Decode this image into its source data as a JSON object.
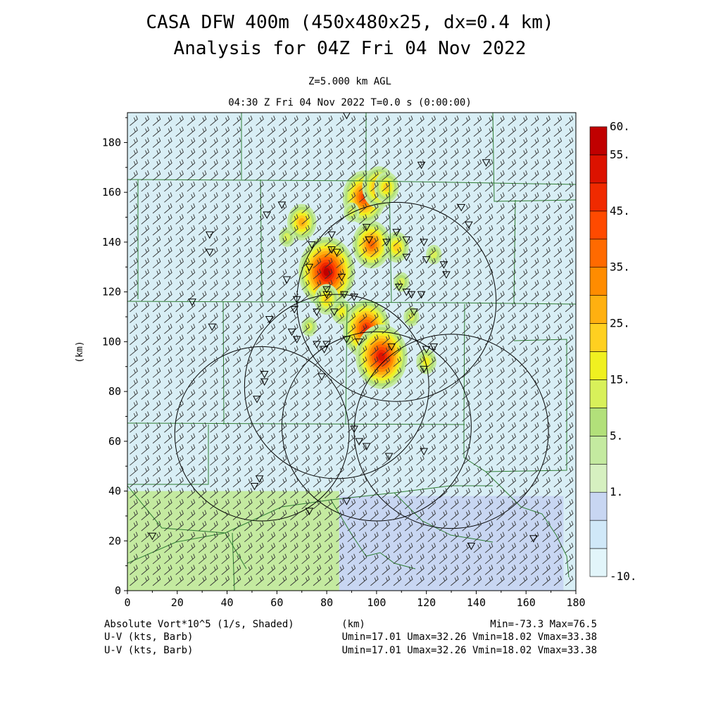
{
  "header": {
    "title_line1": "CASA DFW 400m (450x480x25, dx=0.4 km)",
    "title_line2": "Analysis for 04Z Fri 04 Nov 2022",
    "level": "Z=5.000 km AGL",
    "time_line": "04:30 Z Fri 04 Nov 2022    T=0.0 s (0:00:00)"
  },
  "footer": {
    "left1": "Absolute Vort*10^5 (1/s, Shaded)",
    "center1": "(km)",
    "right1": "Min=-73.3 Max=76.5",
    "left2": "U-V (kts, Barb)",
    "right2": "Umin=17.01 Umax=32.26 Vmin=18.02 Vmax=33.38",
    "left3": "U-V (kts, Barb)",
    "right3": "Umin=17.01 Umax=32.26 Vmin=18.02 Vmax=33.38"
  },
  "colors": {
    "county_lines": "#2e7d32",
    "frame": "#000000",
    "barb": "#333333",
    "base_field": "#d8eef5"
  },
  "chart_data": {
    "type": "heatmap",
    "title": "CASA DFW 400m (450x480x25, dx=0.4 km)",
    "subtitle": "Analysis for 04Z Fri 04 Nov 2022",
    "xlabel": "(km)",
    "ylabel": "(km)",
    "xlim": [
      0,
      180
    ],
    "ylim": [
      0,
      192
    ],
    "x_ticks": [
      0,
      20,
      40,
      60,
      80,
      100,
      120,
      140,
      160,
      180
    ],
    "y_ticks": [
      0,
      20,
      40,
      60,
      80,
      100,
      120,
      140,
      160,
      180
    ],
    "x_tick_labels": [
      "0",
      "20",
      "40",
      "60",
      "80",
      "100",
      "120",
      "140",
      "160",
      "180"
    ],
    "y_tick_labels": [
      "0",
      "20",
      "40",
      "60",
      "80",
      "100",
      "120",
      "140",
      "160",
      "180"
    ],
    "variable": "Absolute Vort*10^5 (1/s, Shaded)",
    "vector_field": "U-V (kts, Barb)",
    "field_min": -73.3,
    "field_max": 76.5,
    "wind_stats": {
      "umin": 17.01,
      "umax": 32.26,
      "vmin": 18.02,
      "vmax": 33.38
    },
    "colorbar": {
      "labels": [
        "60.",
        "55.",
        "45.",
        "35.",
        "25.",
        "15.",
        "5.",
        "1.",
        "-10."
      ],
      "label_values": [
        60,
        55,
        45,
        35,
        25,
        15,
        5,
        1,
        -10
      ],
      "bounds": [
        -10,
        -5,
        0,
        1,
        3,
        5,
        10,
        15,
        20,
        25,
        30,
        35,
        40,
        45,
        50,
        55,
        60
      ],
      "colors": [
        "#e2f5fa",
        "#d0e8f8",
        "#c8d6f2",
        "#d6f0c0",
        "#c4eaa0",
        "#b2e07a",
        "#d8f05a",
        "#f0f020",
        "#ffd020",
        "#ffb010",
        "#ff8c00",
        "#ff6a00",
        "#ff4a00",
        "#f02a00",
        "#dc1200",
        "#c00000"
      ]
    },
    "regions": [
      {
        "x": [
          0,
          85
        ],
        "y": [
          0,
          40
        ],
        "value": 3,
        "note": "light green band"
      },
      {
        "x": [
          85,
          175
        ],
        "y": [
          0,
          38
        ],
        "value": 0.5,
        "note": "lavender band"
      }
    ],
    "vorticity_maxima": [
      {
        "x": 80,
        "y": 128,
        "value": 60
      },
      {
        "x": 95,
        "y": 158,
        "value": 40
      },
      {
        "x": 101,
        "y": 162,
        "value": 30
      },
      {
        "x": 98,
        "y": 139,
        "value": 35
      },
      {
        "x": 96,
        "y": 105,
        "value": 45
      },
      {
        "x": 102,
        "y": 94,
        "value": 50
      },
      {
        "x": 70,
        "y": 148,
        "value": 25
      },
      {
        "x": 108,
        "y": 138,
        "value": 22
      },
      {
        "x": 80,
        "y": 117,
        "value": 20
      },
      {
        "x": 86,
        "y": 112,
        "value": 18
      },
      {
        "x": 120,
        "y": 92,
        "value": 15
      },
      {
        "x": 114,
        "y": 110,
        "value": 14
      },
      {
        "x": 104,
        "y": 162,
        "value": 20
      },
      {
        "x": 64,
        "y": 142,
        "value": 12
      },
      {
        "x": 90,
        "y": 152,
        "value": 14
      },
      {
        "x": 110,
        "y": 124,
        "value": 12
      },
      {
        "x": 73,
        "y": 106,
        "value": 13
      },
      {
        "x": 123,
        "y": 135,
        "value": 10
      }
    ],
    "radar_rings": [
      {
        "cx": 54,
        "cy": 63,
        "r": 35
      },
      {
        "cx": 84,
        "cy": 82,
        "r": 37
      },
      {
        "cx": 100,
        "cy": 66,
        "r": 38
      },
      {
        "cx": 108,
        "cy": 116,
        "r": 40
      },
      {
        "cx": 130,
        "cy": 64,
        "r": 39
      }
    ],
    "stations": [
      [
        88,
        191
      ],
      [
        118,
        171
      ],
      [
        144,
        172
      ],
      [
        62,
        155
      ],
      [
        134,
        154
      ],
      [
        33,
        143
      ],
      [
        33,
        136
      ],
      [
        56,
        151
      ],
      [
        137,
        147
      ],
      [
        96,
        146
      ],
      [
        108,
        144
      ],
      [
        82,
        143
      ],
      [
        97,
        141
      ],
      [
        112,
        141
      ],
      [
        104,
        140
      ],
      [
        74,
        139
      ],
      [
        119,
        140
      ],
      [
        82,
        137
      ],
      [
        84,
        136
      ],
      [
        112,
        134
      ],
      [
        120,
        133
      ],
      [
        73,
        130
      ],
      [
        127,
        131
      ],
      [
        128,
        127
      ],
      [
        86,
        126
      ],
      [
        64,
        125
      ],
      [
        109,
        122
      ],
      [
        112,
        120
      ],
      [
        114,
        119
      ],
      [
        118,
        119
      ],
      [
        87,
        119
      ],
      [
        80,
        119
      ],
      [
        91,
        118
      ],
      [
        68,
        117
      ],
      [
        80,
        121
      ],
      [
        26,
        116
      ],
      [
        67,
        113
      ],
      [
        76,
        112
      ],
      [
        115,
        112
      ],
      [
        83,
        112
      ],
      [
        57,
        109
      ],
      [
        34,
        106
      ],
      [
        66,
        104
      ],
      [
        68,
        101
      ],
      [
        76,
        99
      ],
      [
        80,
        99
      ],
      [
        88,
        101
      ],
      [
        93,
        100
      ],
      [
        120,
        97
      ],
      [
        106,
        98
      ],
      [
        123,
        98
      ],
      [
        79,
        97
      ],
      [
        119,
        89
      ],
      [
        78,
        86
      ],
      [
        55,
        87
      ],
      [
        55,
        84
      ],
      [
        52,
        77
      ],
      [
        91,
        65
      ],
      [
        93,
        60
      ],
      [
        96,
        58
      ],
      [
        119,
        56
      ],
      [
        105,
        54
      ],
      [
        53,
        45
      ],
      [
        51,
        42
      ],
      [
        88,
        36
      ],
      [
        73,
        32
      ],
      [
        10,
        22
      ],
      [
        138,
        18
      ],
      [
        163,
        21
      ]
    ],
    "grid": false
  }
}
